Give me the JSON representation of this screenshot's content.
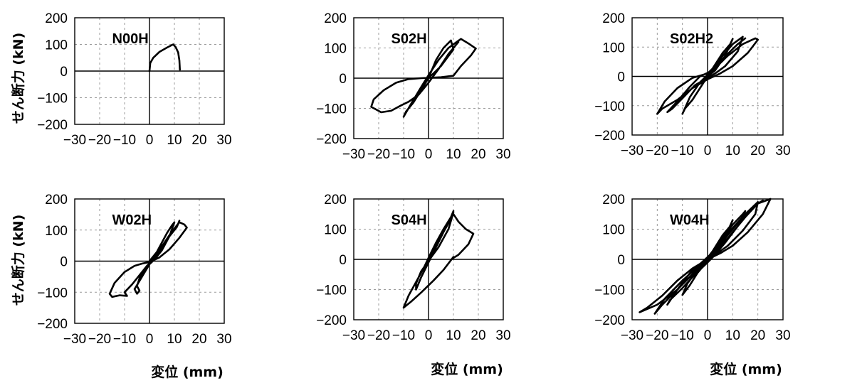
{
  "y_axis_label": "せん断力 (kN)",
  "x_axis_label": "変位 (mm)",
  "chart_data": [
    {
      "type": "line",
      "title": "N00H",
      "xlabel": "",
      "ylabel": "せん断力 (kN)",
      "xlim": [
        -30,
        30
      ],
      "ylim": [
        -200,
        200
      ],
      "x_ticks": [
        "−30",
        "−20",
        "−10",
        "0",
        "10",
        "20",
        "30"
      ],
      "y_ticks": [
        "200",
        "100",
        "0",
        "−100",
        "−200"
      ],
      "grid": true,
      "series": [
        {
          "points": [
            [
              0,
              0
            ],
            [
              0.3,
              30
            ],
            [
              1.5,
              50
            ],
            [
              4,
              72
            ],
            [
              7,
              88
            ],
            [
              9.5,
              100
            ],
            [
              10.5,
              90
            ],
            [
              11.5,
              70
            ],
            [
              12,
              40
            ],
            [
              12.2,
              5
            ]
          ]
        }
      ]
    },
    {
      "type": "line",
      "title": "S02H",
      "xlabel": "",
      "ylabel": "",
      "xlim": [
        -30,
        30
      ],
      "ylim": [
        -200,
        200
      ],
      "x_ticks": [
        "−30",
        "−20",
        "−10",
        "0",
        "10",
        "20",
        "30"
      ],
      "y_ticks": [
        "200",
        "100",
        "0",
        "−100",
        "−200"
      ],
      "grid": true,
      "series": [
        {
          "points": [
            [
              0,
              0
            ],
            [
              3,
              60
            ],
            [
              6,
              100
            ],
            [
              9,
              125
            ],
            [
              10,
              95
            ],
            [
              5,
              40
            ],
            [
              0,
              0
            ],
            [
              -3,
              -40
            ],
            [
              -6,
              -80
            ],
            [
              -9,
              -110
            ],
            [
              -10,
              -128
            ],
            [
              -7,
              -85
            ],
            [
              -3,
              -30
            ],
            [
              0,
              10
            ],
            [
              4,
              60
            ],
            [
              8,
              100
            ],
            [
              11,
              118
            ],
            [
              13,
              130
            ],
            [
              16,
              115
            ],
            [
              19,
              98
            ],
            [
              17,
              75
            ],
            [
              13,
              40
            ],
            [
              10,
              8
            ],
            [
              5,
              3
            ],
            [
              -3,
              0
            ],
            [
              -8,
              -3
            ],
            [
              -13,
              -15
            ],
            [
              -18,
              -40
            ],
            [
              -22,
              -70
            ],
            [
              -23,
              -95
            ],
            [
              -19,
              -113
            ],
            [
              -15,
              -108
            ],
            [
              -11,
              -90
            ],
            [
              -8,
              -78
            ],
            [
              -4,
              -55
            ],
            [
              0,
              -15
            ],
            [
              4,
              30
            ],
            [
              8,
              80
            ],
            [
              11,
              110
            ],
            [
              12,
              120
            ]
          ]
        }
      ]
    },
    {
      "type": "line",
      "title": "S02H2",
      "xlabel": "",
      "ylabel": "",
      "xlim": [
        -30,
        30
      ],
      "ylim": [
        -200,
        200
      ],
      "x_ticks": [
        "−30",
        "−20",
        "−10",
        "0",
        "10",
        "20",
        "30"
      ],
      "y_ticks": [
        "200",
        "100",
        "0",
        "−100",
        "−200"
      ],
      "grid": true,
      "series": [
        {
          "points": [
            [
              0,
              0
            ],
            [
              3,
              40
            ],
            [
              6,
              80
            ],
            [
              9,
              110
            ],
            [
              10,
              128
            ],
            [
              7,
              70
            ],
            [
              3,
              20
            ],
            [
              0,
              0
            ],
            [
              -3,
              -40
            ],
            [
              -6,
              -80
            ],
            [
              -9,
              -110
            ],
            [
              -10,
              -128
            ],
            [
              -7,
              -70
            ],
            [
              -3,
              -20
            ],
            [
              0,
              5
            ],
            [
              5,
              60
            ],
            [
              10,
              110
            ],
            [
              14,
              135
            ],
            [
              12,
              85
            ],
            [
              7,
              35
            ],
            [
              3,
              10
            ],
            [
              0,
              -5
            ],
            [
              -5,
              -30
            ],
            [
              -10,
              -75
            ],
            [
              -14,
              -110
            ],
            [
              -16,
              -122
            ],
            [
              -12,
              -85
            ],
            [
              -7,
              -35
            ],
            [
              -3,
              0
            ],
            [
              2,
              20
            ],
            [
              8,
              70
            ],
            [
              14,
              110
            ],
            [
              19,
              130
            ],
            [
              20,
              125
            ],
            [
              16,
              80
            ],
            [
              10,
              35
            ],
            [
              5,
              10
            ],
            [
              0,
              -10
            ],
            [
              -6,
              -40
            ],
            [
              -12,
              -80
            ],
            [
              -18,
              -110
            ],
            [
              -20,
              -128
            ],
            [
              -17,
              -85
            ],
            [
              -12,
              -40
            ],
            [
              -6,
              -5
            ],
            [
              0,
              10
            ],
            [
              6,
              60
            ],
            [
              12,
              110
            ],
            [
              15,
              130
            ]
          ]
        }
      ]
    },
    {
      "type": "line",
      "title": "W02H",
      "xlabel": "変位 (mm)",
      "ylabel": "せん断力 (kN)",
      "xlim": [
        -30,
        30
      ],
      "ylim": [
        -200,
        200
      ],
      "x_ticks": [
        "−30",
        "−20",
        "−10",
        "0",
        "10",
        "20",
        "30"
      ],
      "y_ticks": [
        "200",
        "100",
        "0",
        "−100",
        "−200"
      ],
      "grid": true,
      "series": [
        {
          "points": [
            [
              0,
              0
            ],
            [
              3,
              30
            ],
            [
              5,
              60
            ],
            [
              7,
              90
            ],
            [
              9,
              115
            ],
            [
              10,
              125
            ],
            [
              8,
              80
            ],
            [
              5,
              35
            ],
            [
              2,
              5
            ],
            [
              -2,
              -25
            ],
            [
              -4,
              -55
            ],
            [
              -5,
              -80
            ],
            [
              -4,
              -95
            ],
            [
              -5,
              -105
            ],
            [
              -6,
              -90
            ],
            [
              -3,
              -50
            ],
            [
              0,
              -10
            ],
            [
              3,
              25
            ],
            [
              6,
              60
            ],
            [
              9,
              95
            ],
            [
              12,
              125
            ],
            [
              14,
              118
            ],
            [
              15,
              108
            ],
            [
              12,
              75
            ],
            [
              8,
              38
            ],
            [
              4,
              12
            ],
            [
              0,
              -3
            ],
            [
              -3,
              -8
            ],
            [
              -6,
              -15
            ],
            [
              -10,
              -35
            ],
            [
              -14,
              -70
            ],
            [
              -16,
              -105
            ],
            [
              -15,
              -115
            ],
            [
              -12,
              -110
            ],
            [
              -9,
              -112
            ],
            [
              -10,
              -100
            ],
            [
              -7,
              -75
            ],
            [
              -4,
              -45
            ],
            [
              -1,
              -15
            ],
            [
              2,
              10
            ],
            [
              5,
              40
            ],
            [
              8,
              80
            ],
            [
              11,
              110
            ],
            [
              12,
              130
            ]
          ]
        }
      ]
    },
    {
      "type": "line",
      "title": "S04H",
      "xlabel": "変位 (mm)",
      "ylabel": "",
      "xlim": [
        -30,
        30
      ],
      "ylim": [
        -200,
        200
      ],
      "x_ticks": [
        "−30",
        "−20",
        "−10",
        "0",
        "10",
        "20",
        "30"
      ],
      "y_ticks": [
        "200",
        "100",
        "0",
        "−100",
        "−200"
      ],
      "grid": true,
      "series": [
        {
          "points": [
            [
              0,
              0
            ],
            [
              3,
              50
            ],
            [
              6,
              100
            ],
            [
              9,
              140
            ],
            [
              10,
              155
            ],
            [
              8,
              100
            ],
            [
              4,
              40
            ],
            [
              0,
              -5
            ],
            [
              -3,
              -40
            ],
            [
              -5,
              -80
            ],
            [
              -5,
              -100
            ],
            [
              -3,
              -60
            ],
            [
              0,
              -10
            ],
            [
              3,
              40
            ],
            [
              6,
              90
            ],
            [
              8,
              120
            ],
            [
              10,
              150
            ],
            [
              12,
              125
            ],
            [
              15,
              100
            ],
            [
              18,
              85
            ],
            [
              16,
              50
            ],
            [
              12,
              15
            ],
            [
              10,
              5
            ],
            [
              10,
              8
            ],
            [
              6,
              -35
            ],
            [
              2,
              -70
            ],
            [
              -3,
              -110
            ],
            [
              -7,
              -140
            ],
            [
              -10,
              -160
            ],
            [
              -8,
              -120
            ],
            [
              -5,
              -75
            ],
            [
              -2,
              -30
            ],
            [
              0,
              5
            ],
            [
              3,
              55
            ],
            [
              6,
              100
            ],
            [
              9,
              140
            ],
            [
              10,
              160
            ]
          ]
        }
      ]
    },
    {
      "type": "line",
      "title": "W04H",
      "xlabel": "変位 (mm)",
      "ylabel": "",
      "xlim": [
        -30,
        30
      ],
      "ylim": [
        -200,
        200
      ],
      "x_ticks": [
        "−30",
        "−20",
        "−10",
        "0",
        "10",
        "20",
        "30"
      ],
      "y_ticks": [
        "200",
        "100",
        "0",
        "−100",
        "−200"
      ],
      "grid": true,
      "series": [
        {
          "points": [
            [
              0,
              0
            ],
            [
              3,
              40
            ],
            [
              6,
              80
            ],
            [
              9,
              110
            ],
            [
              10,
              130
            ],
            [
              7,
              75
            ],
            [
              3,
              25
            ],
            [
              0,
              -5
            ],
            [
              -4,
              -45
            ],
            [
              -7,
              -85
            ],
            [
              -10,
              -118
            ],
            [
              -8,
              -80
            ],
            [
              -4,
              -35
            ],
            [
              0,
              5
            ],
            [
              5,
              60
            ],
            [
              10,
              115
            ],
            [
              14,
              150
            ],
            [
              15,
              160
            ],
            [
              12,
              110
            ],
            [
              7,
              55
            ],
            [
              3,
              15
            ],
            [
              0,
              -10
            ],
            [
              -5,
              -50
            ],
            [
              -10,
              -95
            ],
            [
              -15,
              -135
            ],
            [
              -16,
              -150
            ],
            [
              -12,
              -100
            ],
            [
              -7,
              -45
            ],
            [
              -2,
              -8
            ],
            [
              3,
              30
            ],
            [
              9,
              95
            ],
            [
              15,
              150
            ],
            [
              20,
              190
            ],
            [
              19,
              150
            ],
            [
              14,
              95
            ],
            [
              8,
              45
            ],
            [
              3,
              15
            ],
            [
              0,
              -5
            ],
            [
              -6,
              -50
            ],
            [
              -12,
              -100
            ],
            [
              -18,
              -150
            ],
            [
              -21,
              -180
            ],
            [
              -17,
              -130
            ],
            [
              -10,
              -70
            ],
            [
              -4,
              -25
            ],
            [
              2,
              15
            ],
            [
              8,
              70
            ],
            [
              15,
              140
            ],
            [
              20,
              185
            ],
            [
              25,
              200
            ],
            [
              22,
              150
            ],
            [
              16,
              90
            ],
            [
              10,
              45
            ],
            [
              5,
              20
            ],
            [
              0,
              0
            ],
            [
              -6,
              -30
            ],
            [
              -12,
              -70
            ],
            [
              -18,
              -120
            ],
            [
              -24,
              -160
            ],
            [
              -27,
              -175
            ],
            [
              -20,
              -150
            ],
            [
              -12,
              -100
            ],
            [
              -5,
              -40
            ],
            [
              0,
              0
            ],
            [
              5,
              50
            ],
            [
              12,
              120
            ],
            [
              19,
              180
            ],
            [
              22,
              195
            ]
          ]
        }
      ]
    }
  ]
}
